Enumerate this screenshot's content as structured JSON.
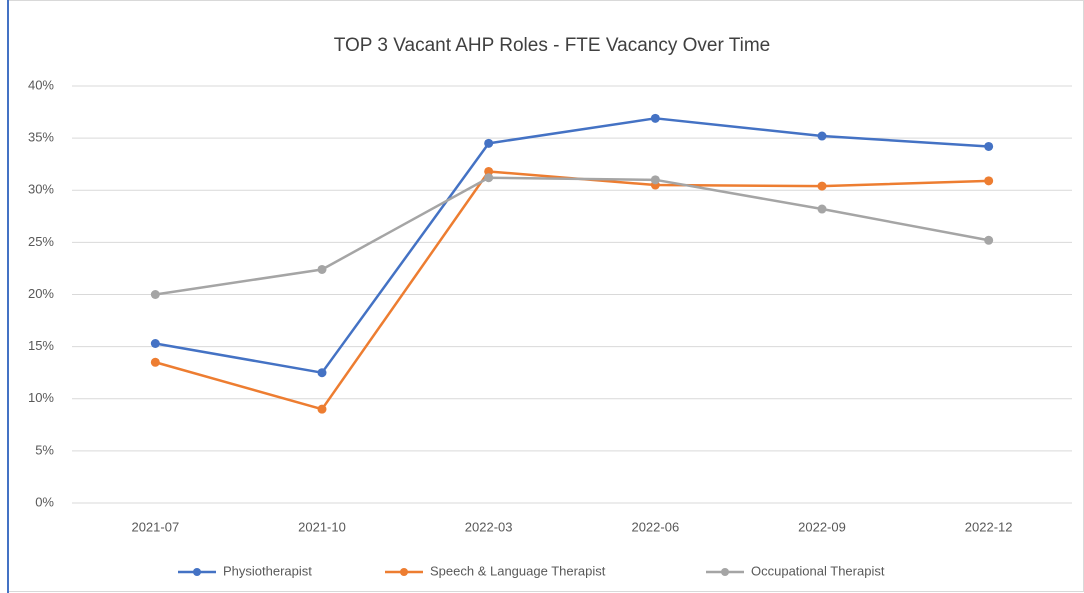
{
  "chart_data": {
    "type": "line",
    "title": "TOP 3 Vacant AHP Roles - FTE Vacancy Over Time",
    "categories": [
      "2021-07",
      "2021-10",
      "2022-03",
      "2022-06",
      "2022-09",
      "2022-12"
    ],
    "series": [
      {
        "name": "Physiotherapist",
        "color": "#4472c4",
        "values": [
          15.3,
          12.5,
          34.5,
          36.9,
          35.2,
          34.2
        ]
      },
      {
        "name": "Speech & Language Therapist",
        "color": "#ed7d31",
        "values": [
          13.5,
          9.0,
          31.8,
          30.5,
          30.4,
          30.9
        ]
      },
      {
        "name": "Occupational Therapist",
        "color": "#a5a5a5",
        "values": [
          20.0,
          22.4,
          31.2,
          31.0,
          28.2,
          25.2
        ]
      }
    ],
    "ylim": [
      0,
      40
    ],
    "yticks": [
      {
        "value": 0,
        "label": "0%"
      },
      {
        "value": 5,
        "label": "5%"
      },
      {
        "value": 10,
        "label": "10%"
      },
      {
        "value": 15,
        "label": "15%"
      },
      {
        "value": 20,
        "label": "20%"
      },
      {
        "value": 25,
        "label": "25%"
      },
      {
        "value": 30,
        "label": "30%"
      },
      {
        "value": 35,
        "label": "35%"
      },
      {
        "value": 40,
        "label": "40%"
      }
    ],
    "grid": true,
    "legend": "bottom"
  }
}
